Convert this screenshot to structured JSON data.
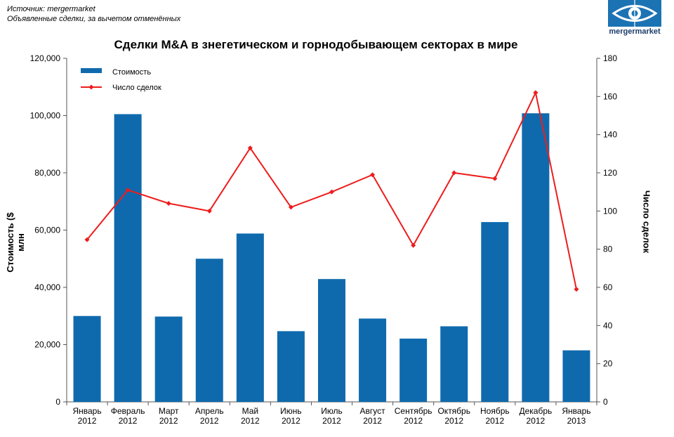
{
  "source": {
    "line1": "Источник: mergermarket",
    "line2": "Объявленные сделки, за вычетом отменённых"
  },
  "logo": {
    "text": "mergermarket",
    "icon": "eye-logo-icon"
  },
  "colors": {
    "bar": "#0f6aad",
    "line": "#ee1c1c",
    "axis": "#555555"
  },
  "chart_data": {
    "type": "bar+line",
    "title": "Сделки M&A  в знегетическом и горнодобывающем секторах в мире",
    "ylabel": "Стоимость ($ млн",
    "y2label": "Число сделок",
    "categories": [
      [
        "Январь",
        "2012"
      ],
      [
        "Февраль",
        "2012"
      ],
      [
        "Март",
        "2012"
      ],
      [
        "Апрель",
        "2012"
      ],
      [
        "Май",
        "2012"
      ],
      [
        "Июнь",
        "2012"
      ],
      [
        "Июль",
        "2012"
      ],
      [
        "Август",
        "2012"
      ],
      [
        "Сентябрь",
        "2012"
      ],
      [
        "Октябрь",
        "2012"
      ],
      [
        "Ноябрь",
        "2012"
      ],
      [
        "Декабрь",
        "2012"
      ],
      [
        "Январь",
        "2013"
      ]
    ],
    "ylim": [
      0,
      120000
    ],
    "y_ticks": [
      "0",
      "20,000",
      "40,000",
      "60,000",
      "80,000",
      "100,000",
      "120,000"
    ],
    "y_tick_values": [
      0,
      20000,
      40000,
      60000,
      80000,
      100000,
      120000
    ],
    "y2lim": [
      0,
      180
    ],
    "y2_ticks": [
      0,
      20,
      40,
      60,
      80,
      100,
      120,
      140,
      160,
      180
    ],
    "legend_position": "top-left",
    "series": [
      {
        "name": "Стоимость",
        "kind": "bar",
        "values": [
          30000,
          100500,
          29800,
          50000,
          58800,
          24700,
          42900,
          29100,
          22100,
          26400,
          62800,
          100800,
          18000
        ]
      },
      {
        "name": "Число сделок",
        "kind": "line",
        "axis": "right",
        "values": [
          85,
          111,
          104,
          100,
          133,
          102,
          110,
          119,
          82,
          120,
          117,
          162,
          59
        ]
      }
    ]
  }
}
